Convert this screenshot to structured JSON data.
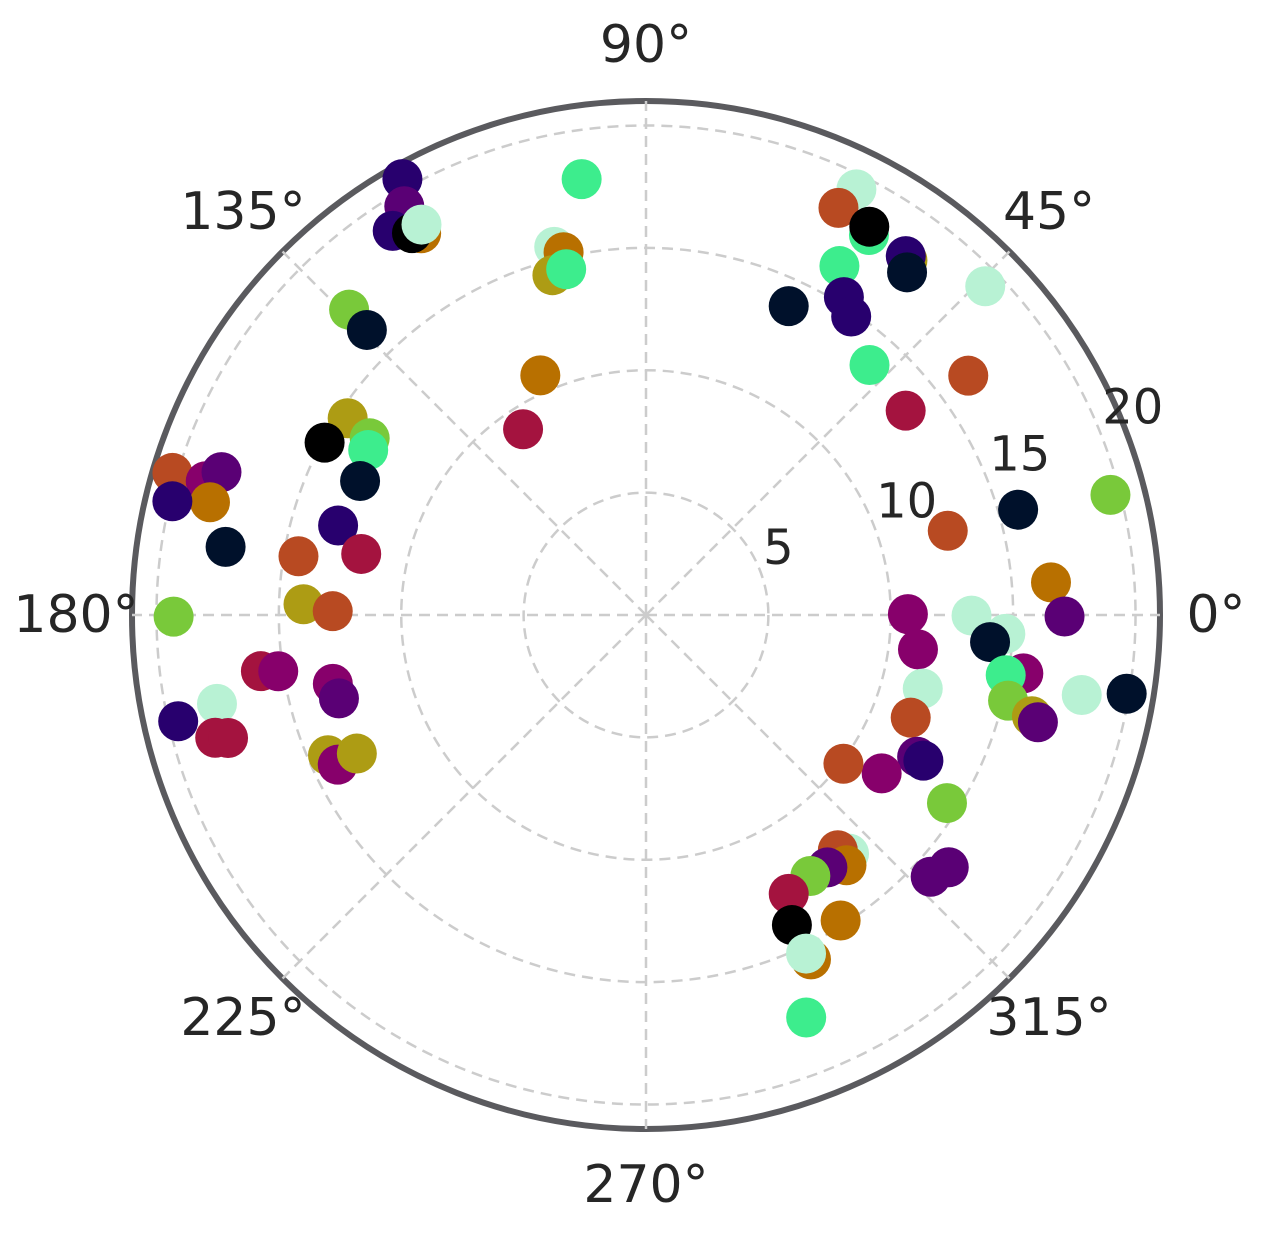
{
  "chart_data": {
    "type": "scatter",
    "projection": "polar",
    "rlim": [
      0,
      21
    ],
    "r_ticks": [
      5,
      10,
      15,
      20
    ],
    "r_tick_labels": [
      "5",
      "10",
      "15",
      "20"
    ],
    "theta_ticks": [
      0,
      45,
      90,
      135,
      180,
      225,
      270,
      315
    ],
    "theta_tick_labels": [
      "0°",
      "45°",
      "90°",
      "135°",
      "180°",
      "225°",
      "270°",
      "315°"
    ],
    "grid": true,
    "grid_style": "dashed",
    "points": [
      {
        "theta": 63.7,
        "r": 19.4,
        "color": "#b8f2d4"
      },
      {
        "theta": 64.7,
        "r": 18.4,
        "color": "#b84a22"
      },
      {
        "theta": 59.6,
        "r": 18.0,
        "color": "#3ded8d"
      },
      {
        "theta": 60.1,
        "r": 18.3,
        "color": "#000000"
      },
      {
        "theta": 53.6,
        "r": 18.0,
        "color": "#ad9c14"
      },
      {
        "theta": 54.1,
        "r": 18.1,
        "color": "#28006e"
      },
      {
        "theta": 52.7,
        "r": 17.6,
        "color": "#00112b"
      },
      {
        "theta": 44.1,
        "r": 19.3,
        "color": "#b8f2d4"
      },
      {
        "theta": 61.0,
        "r": 16.3,
        "color": "#3ded8d"
      },
      {
        "theta": 58.1,
        "r": 15.3,
        "color": "#28006e"
      },
      {
        "theta": 55.5,
        "r": 14.8,
        "color": "#28006e"
      },
      {
        "theta": 65.2,
        "r": 13.9,
        "color": "#00112b"
      },
      {
        "theta": 48.2,
        "r": 13.7,
        "color": "#3ded8d"
      },
      {
        "theta": 36.6,
        "r": 16.4,
        "color": "#b84a22"
      },
      {
        "theta": 38.2,
        "r": 13.5,
        "color": "#a4133f"
      },
      {
        "theta": 14.5,
        "r": 19.6,
        "color": "#79c93a"
      },
      {
        "theta": 15.8,
        "r": 15.8,
        "color": "#00112b"
      },
      {
        "theta": 15.6,
        "r": 12.8,
        "color": "#b84a22"
      },
      {
        "theta": 4.6,
        "r": 16.6,
        "color": "#b87000"
      },
      {
        "theta": 0.2,
        "r": 10.7,
        "color": "#87006b"
      },
      {
        "theta": -0.1,
        "r": 13.3,
        "color": "#b8f2d4"
      },
      {
        "theta": -0.2,
        "r": 17.1,
        "color": "#5a0075"
      },
      {
        "theta": -3.0,
        "r": 14.7,
        "color": "#b8f2d4"
      },
      {
        "theta": -4.5,
        "r": 14.1,
        "color": "#00112b"
      },
      {
        "theta": -9.3,
        "r": 19.9,
        "color": "#00112b"
      },
      {
        "theta": -7.2,
        "r": 11.2,
        "color": "#87006b"
      },
      {
        "theta": -8.8,
        "r": 15.6,
        "color": "#87006b"
      },
      {
        "theta": -9.5,
        "r": 14.9,
        "color": "#3ded8d"
      },
      {
        "theta": -10.4,
        "r": 18.1,
        "color": "#b8f2d4"
      },
      {
        "theta": -13.3,
        "r": 15.2,
        "color": "#79c93a"
      },
      {
        "theta": -14.7,
        "r": 16.3,
        "color": "#ad9c14"
      },
      {
        "theta": -15.3,
        "r": 16.6,
        "color": "#5a0075"
      },
      {
        "theta": -14.9,
        "r": 11.7,
        "color": "#b8f2d4"
      },
      {
        "theta": -21.2,
        "r": 11.6,
        "color": "#b84a22"
      },
      {
        "theta": -27.6,
        "r": 12.5,
        "color": "#5a0075"
      },
      {
        "theta": -27.7,
        "r": 12.8,
        "color": "#28006e"
      },
      {
        "theta": -32.0,
        "r": 14.5,
        "color": "#79c93a"
      },
      {
        "theta": -33.9,
        "r": 11.6,
        "color": "#87006b"
      },
      {
        "theta": -37.0,
        "r": 10.1,
        "color": "#b84a22"
      },
      {
        "theta": -39.8,
        "r": 16.1,
        "color": "#5a0075"
      },
      {
        "theta": -42.6,
        "r": 15.8,
        "color": "#5a0075"
      },
      {
        "theta": -49.6,
        "r": 12.8,
        "color": "#b8f2d4"
      },
      {
        "theta": -50.8,
        "r": 12.4,
        "color": "#b84a22"
      },
      {
        "theta": -51.3,
        "r": 13.1,
        "color": "#b87000"
      },
      {
        "theta": -54.3,
        "r": 12.7,
        "color": "#5a0075"
      },
      {
        "theta": -57.8,
        "r": 12.6,
        "color": "#79c93a"
      },
      {
        "theta": -57.5,
        "r": 14.8,
        "color": "#b87000"
      },
      {
        "theta": -62.9,
        "r": 12.8,
        "color": "#a4133f"
      },
      {
        "theta": -64.8,
        "r": 14.0,
        "color": "#000000"
      },
      {
        "theta": -64.4,
        "r": 15.6,
        "color": "#b87000"
      },
      {
        "theta": -64.7,
        "r": 15.3,
        "color": "#b8f2d4"
      },
      {
        "theta": -68.3,
        "r": 17.7,
        "color": "#3ded8d"
      },
      {
        "theta": 98.4,
        "r": 18.0,
        "color": "#3ded8d"
      },
      {
        "theta": 104.0,
        "r": 15.5,
        "color": "#b8f2d4"
      },
      {
        "theta": 102.8,
        "r": 15.2,
        "color": "#b87000"
      },
      {
        "theta": 105.4,
        "r": 14.4,
        "color": "#ad9c14"
      },
      {
        "theta": 103.0,
        "r": 14.5,
        "color": "#3ded8d"
      },
      {
        "theta": 119.2,
        "r": 20.4,
        "color": "#28006e"
      },
      {
        "theta": 120.6,
        "r": 19.4,
        "color": "#5a0075"
      },
      {
        "theta": 123.4,
        "r": 18.8,
        "color": "#28006e"
      },
      {
        "theta": 120.5,
        "r": 18.1,
        "color": "#b87000"
      },
      {
        "theta": 121.5,
        "r": 18.3,
        "color": "#000000"
      },
      {
        "theta": 119.9,
        "r": 18.4,
        "color": "#b8f2d4"
      },
      {
        "theta": 113.8,
        "r": 10.7,
        "color": "#b87000"
      },
      {
        "theta": 134.2,
        "r": 17.4,
        "color": "#79c93a"
      },
      {
        "theta": 134.4,
        "r": 16.3,
        "color": "#00112b"
      },
      {
        "theta": 123.5,
        "r": 9.1,
        "color": "#a4133f"
      },
      {
        "theta": 146.6,
        "r": 14.6,
        "color": "#ad9c14"
      },
      {
        "theta": 147.4,
        "r": 13.4,
        "color": "#79c93a"
      },
      {
        "theta": 149.3,
        "r": 13.2,
        "color": "#3ded8d"
      },
      {
        "theta": 151.8,
        "r": 14.9,
        "color": "#000000"
      },
      {
        "theta": 154.9,
        "r": 12.9,
        "color": "#00112b"
      },
      {
        "theta": 163.3,
        "r": 20.2,
        "color": "#b84a22"
      },
      {
        "theta": 163.1,
        "r": 18.8,
        "color": "#87006b"
      },
      {
        "theta": 161.4,
        "r": 18.3,
        "color": "#5a0075"
      },
      {
        "theta": 165.5,
        "r": 18.4,
        "color": "#b87000"
      },
      {
        "theta": 166.5,
        "r": 19.9,
        "color": "#28006e"
      },
      {
        "theta": 170.8,
        "r": 17.4,
        "color": "#00112b"
      },
      {
        "theta": 163.8,
        "r": 13.1,
        "color": "#28006e"
      },
      {
        "theta": 167.9,
        "r": 11.9,
        "color": "#a4133f"
      },
      {
        "theta": 170.4,
        "r": 14.4,
        "color": "#b84a22"
      },
      {
        "theta": 178.2,
        "r": 14.0,
        "color": "#ad9c14"
      },
      {
        "theta": 179.3,
        "r": 12.8,
        "color": "#b84a22"
      },
      {
        "theta": 180.2,
        "r": 19.3,
        "color": "#79c93a"
      },
      {
        "theta": 188.3,
        "r": 15.9,
        "color": "#a4133f"
      },
      {
        "theta": 188.7,
        "r": 15.2,
        "color": "#87006b"
      },
      {
        "theta": 192.4,
        "r": 13.1,
        "color": "#87006b"
      },
      {
        "theta": 195.2,
        "r": 13.0,
        "color": "#5a0075"
      },
      {
        "theta": 192.8,
        "r": 19.6,
        "color": "#28006e"
      },
      {
        "theta": 191.7,
        "r": 17.9,
        "color": "#b8f2d4"
      },
      {
        "theta": 195.9,
        "r": 18.3,
        "color": "#a4133f"
      },
      {
        "theta": 196.4,
        "r": 17.8,
        "color": "#a4133f"
      },
      {
        "theta": 203.8,
        "r": 14.2,
        "color": "#ad9c14"
      },
      {
        "theta": 205.9,
        "r": 14.0,
        "color": "#87006b"
      },
      {
        "theta": 205.6,
        "r": 13.1,
        "color": "#ad9c14"
      }
    ]
  }
}
